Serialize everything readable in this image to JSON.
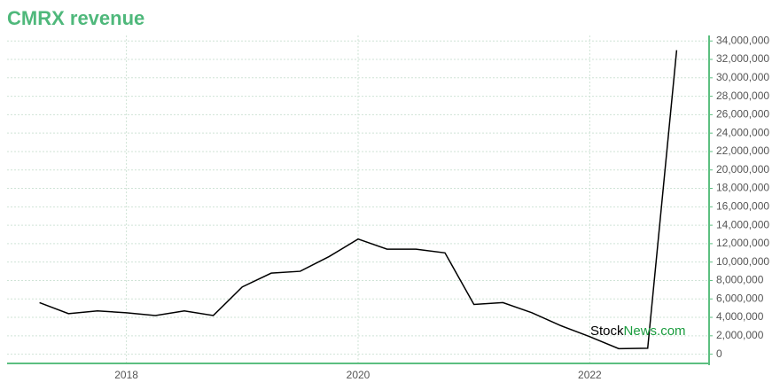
{
  "chart_data": {
    "type": "line",
    "title": "CMRX revenue",
    "x": [
      2017.25,
      2017.5,
      2017.75,
      2018,
      2018.25,
      2018.5,
      2018.75,
      2019,
      2019.25,
      2019.5,
      2019.75,
      2020,
      2020.25,
      2020.5,
      2020.75,
      2021,
      2021.25,
      2021.5,
      2021.75,
      2022,
      2022.25,
      2022.5,
      2022.75
    ],
    "series": [
      {
        "name": "revenue",
        "color": "#000000",
        "values": [
          5600000,
          4400000,
          4700000,
          4500000,
          4200000,
          4700000,
          4200000,
          7300000,
          8800000,
          9000000,
          10600000,
          12500000,
          11400000,
          11400000,
          11000000,
          5400000,
          5600000,
          4500000,
          3100000,
          1900000,
          600000,
          650000,
          33000000
        ]
      }
    ],
    "xlim": [
      2016.97,
      2023.03
    ],
    "xticks": [
      2018,
      2020,
      2022
    ],
    "ylim": [
      -1000000,
      34600000
    ],
    "yticks": [
      0,
      {
        "value": 2000000,
        "label": "2,000,000"
      },
      {
        "value": 4000000,
        "label": "4,000,000"
      },
      {
        "value": 6000000,
        "label": "6,000,000"
      },
      {
        "value": 8000000,
        "label": "8,000,000"
      },
      {
        "value": 10000000,
        "label": "10,000,000"
      },
      {
        "value": 12000000,
        "label": "12,000,000"
      },
      {
        "value": 14000000,
        "label": "14,000,000"
      },
      {
        "value": 16000000,
        "label": "16,000,000"
      },
      {
        "value": 18000000,
        "label": "18,000,000"
      },
      {
        "value": 20000000,
        "label": "20,000,000"
      },
      {
        "value": 22000000,
        "label": "22,000,000"
      },
      {
        "value": 24000000,
        "label": "24,000,000"
      },
      {
        "value": 26000000,
        "label": "26,000,000"
      },
      {
        "value": 28000000,
        "label": "28,000,000"
      },
      {
        "value": 30000000,
        "label": "30,000,000"
      },
      {
        "value": 32000000,
        "label": "32,000,000"
      },
      {
        "value": 34000000,
        "label": "34,000,000"
      }
    ],
    "grid": true,
    "axis_color": "#5cbf80",
    "watermark": {
      "prefix": "Stock",
      "suffix": "News.com"
    }
  }
}
